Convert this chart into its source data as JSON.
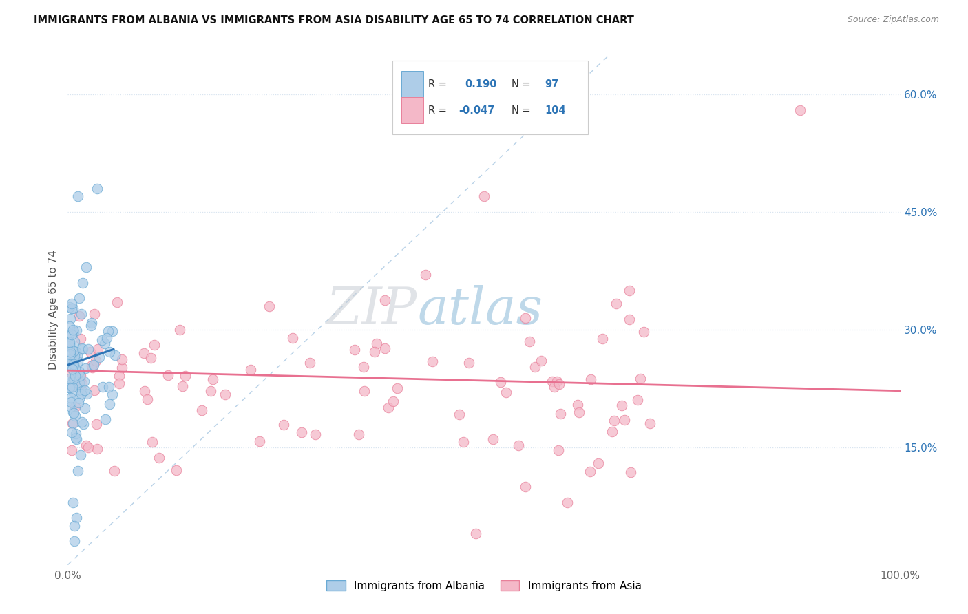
{
  "title": "IMMIGRANTS FROM ALBANIA VS IMMIGRANTS FROM ASIA DISABILITY AGE 65 TO 74 CORRELATION CHART",
  "source": "Source: ZipAtlas.com",
  "ylabel": "Disability Age 65 to 74",
  "ytick_labels": [
    "15.0%",
    "30.0%",
    "45.0%",
    "60.0%"
  ],
  "ytick_values": [
    0.15,
    0.3,
    0.45,
    0.6
  ],
  "xlim": [
    0.0,
    1.0
  ],
  "ylim": [
    0.0,
    0.65
  ],
  "legend_entries": [
    {
      "label": "Immigrants from Albania",
      "color": "#aecde8",
      "R": "0.190",
      "N": "97"
    },
    {
      "label": "Immigrants from Asia",
      "color": "#f4b8c8",
      "R": "-0.047",
      "N": "104"
    }
  ],
  "watermark_zip": "ZIP",
  "watermark_atlas": "atlas",
  "albania_scatter_color": "#aecde8",
  "albania_edge_color": "#6aaad4",
  "asia_scatter_color": "#f4b8c8",
  "asia_edge_color": "#e8809a",
  "trend_albania_color": "#2e75b6",
  "trend_asia_color": "#e87090",
  "ref_line_color": "#8ab4d8",
  "background_color": "#ffffff",
  "grid_color": "#d8e4f0",
  "legend_text_color": "#2e75b6",
  "legend_label_color": "#333333",
  "bottom_legend_labels": [
    "Immigrants from Albania",
    "Immigrants from Asia"
  ]
}
